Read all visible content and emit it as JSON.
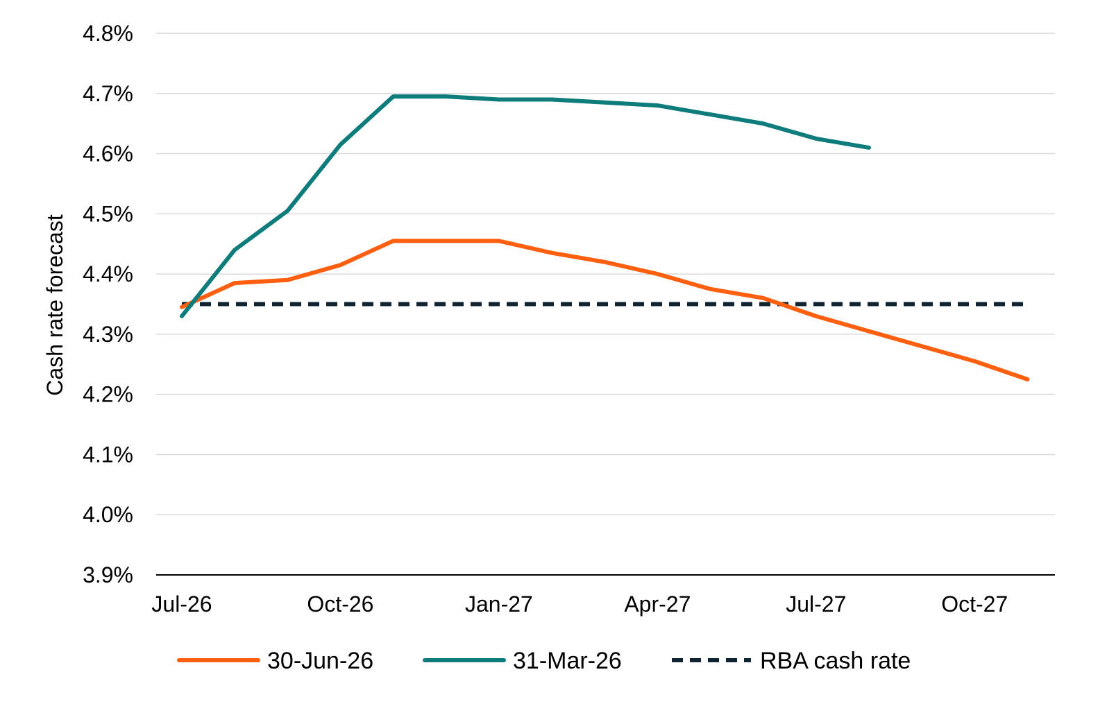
{
  "chart_data": {
    "type": "line",
    "title": "",
    "xlabel": "",
    "ylabel": "Cash rate forecast",
    "ylim": [
      3.9,
      4.8
    ],
    "ytick_values": [
      3.9,
      4.0,
      4.1,
      4.2,
      4.3,
      4.4,
      4.5,
      4.6,
      4.7,
      4.8
    ],
    "ytick_labels": [
      "3.9%",
      "4.0%",
      "4.1%",
      "4.2%",
      "4.3%",
      "4.4%",
      "4.5%",
      "4.6%",
      "4.7%",
      "4.8%"
    ],
    "x": [
      "Jul-26",
      "Aug-26",
      "Sep-26",
      "Oct-26",
      "Nov-26",
      "Dec-26",
      "Jan-27",
      "Feb-27",
      "Mar-27",
      "Apr-27",
      "May-27",
      "Jun-27",
      "Jul-27",
      "Aug-27",
      "Sep-27",
      "Oct-27",
      "Nov-27"
    ],
    "xtick_labels": [
      {
        "index": 0,
        "label": "Jul-26"
      },
      {
        "index": 3,
        "label": "Oct-26"
      },
      {
        "index": 6,
        "label": "Jan-27"
      },
      {
        "index": 9,
        "label": "Apr-27"
      },
      {
        "index": 12,
        "label": "Jul-27"
      },
      {
        "index": 15,
        "label": "Oct-27"
      }
    ],
    "grid": true,
    "legend_position": "bottom",
    "series": [
      {
        "name": "30-Jun-26",
        "color": "#FF5F0F",
        "style": "solid",
        "values": [
          4.345,
          4.385,
          4.39,
          4.415,
          4.455,
          4.455,
          4.455,
          4.435,
          4.42,
          4.4,
          4.375,
          4.36,
          4.33,
          4.305,
          4.28,
          4.255,
          4.225
        ]
      },
      {
        "name": "31-Mar-26",
        "color": "#0E7C7B",
        "style": "solid",
        "values": [
          4.33,
          4.44,
          4.505,
          4.615,
          4.695,
          4.695,
          4.69,
          4.69,
          4.685,
          4.68,
          4.665,
          4.65,
          4.625,
          4.61,
          null,
          null,
          null
        ]
      },
      {
        "name": "RBA cash rate",
        "color": "#0F2430",
        "style": "dashed",
        "values": [
          4.35,
          4.35,
          4.35,
          4.35,
          4.35,
          4.35,
          4.35,
          4.35,
          4.35,
          4.35,
          4.35,
          4.35,
          4.35,
          4.35,
          4.35,
          4.35,
          4.35
        ]
      }
    ]
  }
}
